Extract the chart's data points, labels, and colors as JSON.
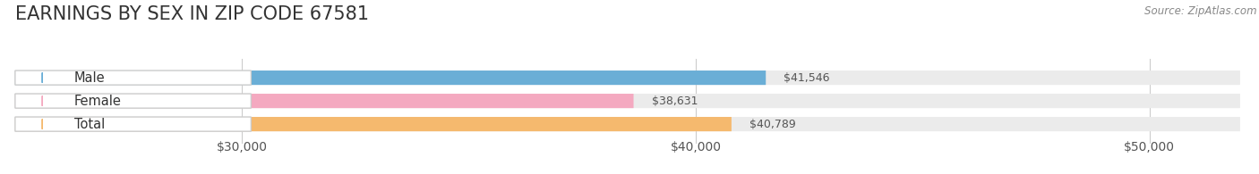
{
  "title": "EARNINGS BY SEX IN ZIP CODE 67581",
  "source": "Source: ZipAtlas.com",
  "categories": [
    "Male",
    "Female",
    "Total"
  ],
  "values": [
    41546,
    38631,
    40789
  ],
  "bar_colors": [
    "#6aaed6",
    "#f4a9c0",
    "#f5b96e"
  ],
  "label_colors": [
    "#6aaed6",
    "#f4a9c0",
    "#f5b96e"
  ],
  "bar_labels": [
    "$41,546",
    "$38,631",
    "$40,789"
  ],
  "xlim": [
    25000,
    52000
  ],
  "xticks": [
    30000,
    40000,
    50000
  ],
  "xtick_labels": [
    "$30,000",
    "$40,000",
    "$50,000"
  ],
  "background_color": "#ffffff",
  "bar_bg_color": "#ebebeb",
  "title_fontsize": 15,
  "tick_fontsize": 10,
  "label_fontsize": 9,
  "source_fontsize": 8.5,
  "bar_height": 0.62,
  "figsize": [
    14.06,
    1.95
  ]
}
